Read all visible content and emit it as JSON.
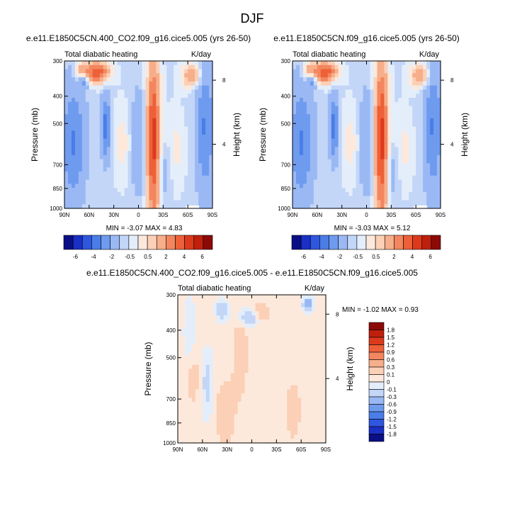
{
  "figure": {
    "title": "DJF"
  },
  "colors": {
    "top_scale": [
      "#0a0f86",
      "#1a2fc4",
      "#2f56de",
      "#4a7de8",
      "#6f9bef",
      "#9ab9f4",
      "#c3d6f8",
      "#e4eefb",
      "#fde9dc",
      "#fbd0b7",
      "#f7ae8a",
      "#f3865f",
      "#ee6037",
      "#dd3a1c",
      "#bf1f0d",
      "#8c0a05"
    ],
    "diff_scale": [
      "#0a0f86",
      "#1a2fc4",
      "#2f56de",
      "#4a7de8",
      "#6f9bef",
      "#9ab9f4",
      "#c3d6f8",
      "#e4eefb",
      "#fde9dc",
      "#fbd0b7",
      "#f7ae8a",
      "#f3865f",
      "#ee6037",
      "#dd3a1c",
      "#bf1f0d",
      "#8c0a05"
    ],
    "land_fill": "#ffffff"
  },
  "chart_data": [
    {
      "id": "panel-co2",
      "type": "heatmap",
      "title": "e.e11.E1850C5CN.400_CO2.f09_g16.cice5.005 (yrs 26-50)",
      "left_label": "Total diabatic heating",
      "right_label": "K/day",
      "ylabel": "Pressure (mb)",
      "ylabel_right": "Height (km)",
      "x_ticks": [
        "90N",
        "60N",
        "30N",
        "0",
        "30S",
        "60S",
        "90S"
      ],
      "y_ticks": [
        "300",
        "400",
        "500",
        "700",
        "850",
        "1000"
      ],
      "y_ticks_values": [
        300,
        400,
        500,
        700,
        850,
        1000
      ],
      "height_ticks": [
        "8",
        "4"
      ],
      "height_ticks_values": [
        8,
        4
      ],
      "xlim": [
        90,
        -90
      ],
      "ylim": [
        1000,
        300
      ],
      "min_label": "MIN =",
      "min_value": "-3.07",
      "max_label": "MAX =",
      "max_value": "4.83",
      "colorbar_labels": [
        "-6",
        "-4",
        "-2",
        "-0.5",
        "0.5",
        "2",
        "4",
        "6"
      ]
    },
    {
      "id": "panel-control",
      "type": "heatmap",
      "title": "e.e11.E1850C5CN.f09_g16.cice5.005 (yrs 26-50)",
      "left_label": "Total diabatic heating",
      "right_label": "K/day",
      "ylabel": "Pressure (mb)",
      "ylabel_right": "Height (km)",
      "x_ticks": [
        "90N",
        "60N",
        "30N",
        "0",
        "30S",
        "60S",
        "90S"
      ],
      "y_ticks": [
        "300",
        "400",
        "500",
        "700",
        "850",
        "1000"
      ],
      "y_ticks_values": [
        300,
        400,
        500,
        700,
        850,
        1000
      ],
      "height_ticks": [
        "8",
        "4"
      ],
      "height_ticks_values": [
        8,
        4
      ],
      "xlim": [
        90,
        -90
      ],
      "ylim": [
        1000,
        300
      ],
      "min_label": "MIN =",
      "min_value": "-3.03",
      "max_label": "MAX =",
      "max_value": "5.12",
      "colorbar_labels": [
        "-6",
        "-4",
        "-2",
        "-0.5",
        "0.5",
        "2",
        "4",
        "6"
      ]
    },
    {
      "id": "panel-diff",
      "type": "heatmap",
      "title": "e.e11.E1850C5CN.400_CO2.f09_g16.cice5.005 - e.e11.E1850C5CN.f09_g16.cice5.005",
      "left_label": "Total diabatic heating",
      "right_label": "K/day",
      "ylabel": "Pressure (mb)",
      "ylabel_right": "Height (km)",
      "x_ticks": [
        "90N",
        "60N",
        "30N",
        "0",
        "30S",
        "60S",
        "90S"
      ],
      "y_ticks": [
        "300",
        "400",
        "500",
        "700",
        "850",
        "1000"
      ],
      "y_ticks_values": [
        300,
        400,
        500,
        700,
        850,
        1000
      ],
      "height_ticks": [
        "8",
        "4"
      ],
      "height_ticks_values": [
        8,
        4
      ],
      "xlim": [
        90,
        -90
      ],
      "ylim": [
        1000,
        300
      ],
      "min_label": "MIN =",
      "min_value": "-1.02",
      "max_label": "MAX =",
      "max_value": "0.93",
      "colorbar_labels": [
        "1.8",
        "1.5",
        "1.2",
        "0.9",
        "0.6",
        "0.3",
        "0.1",
        "0",
        "-0.1",
        "-0.3",
        "-0.6",
        "-0.9",
        "-1.2",
        "-1.5",
        "-1.8"
      ]
    }
  ]
}
